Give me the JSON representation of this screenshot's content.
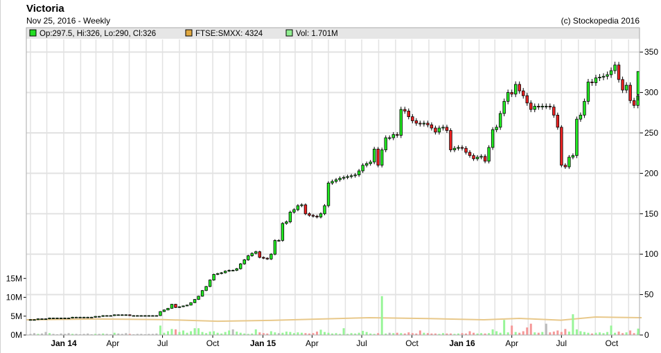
{
  "header": {
    "title": "Victoria",
    "subtitle": "Nov 25, 2016 - Weekly",
    "copyright": "(c) Stockopedia 2016"
  },
  "legend": [
    {
      "label": "Op:297.5, Hi:326, Lo:290, Cl:326",
      "color": "#22dd22"
    },
    {
      "label": "FTSE:SMXX: 4324",
      "color": "#e0a840"
    },
    {
      "label": "Vol: 1.701M",
      "color": "#90ee90"
    }
  ],
  "colors": {
    "up": "#22ee22",
    "down": "#ee2222",
    "vol_up": "#98f598",
    "vol_down": "#f59898",
    "vol_neutral": "#bbbbbb",
    "index": "#e8c88a",
    "grid": "#e2e2e2"
  },
  "chart_data": {
    "type": "candlestick",
    "interval": "weekly",
    "end_date": "2016-11-25",
    "price_axis": {
      "side": "right",
      "ticks": [
        0,
        50,
        100,
        150,
        200,
        250,
        300,
        350
      ],
      "range": [
        0,
        365
      ]
    },
    "volume_axis": {
      "side": "left",
      "ticks": [
        "0M",
        "5M",
        "10M",
        "15M"
      ],
      "tick_values": [
        0,
        5,
        10,
        15
      ]
    },
    "x_ticks": [
      {
        "label": "Jan 14",
        "date": "2014-01-01",
        "bold": true
      },
      {
        "label": "Apr",
        "date": "2014-04-01"
      },
      {
        "label": "Jul",
        "date": "2014-07-01"
      },
      {
        "label": "Oct",
        "date": "2014-10-01"
      },
      {
        "label": "Jan 15",
        "date": "2015-01-01",
        "bold": true
      },
      {
        "label": "Apr",
        "date": "2015-04-01"
      },
      {
        "label": "Jul",
        "date": "2015-07-01"
      },
      {
        "label": "Oct",
        "date": "2015-10-01"
      },
      {
        "label": "Jan 16",
        "date": "2016-01-01",
        "bold": true
      },
      {
        "label": "Apr",
        "date": "2016-04-01"
      },
      {
        "label": "Jul",
        "date": "2016-07-01"
      },
      {
        "label": "Oct",
        "date": "2016-10-01"
      }
    ],
    "first_open": 19,
    "last_candle": {
      "open": 297.5,
      "high": 326,
      "low": 290,
      "close": 326
    },
    "close": [
      19,
      19,
      20,
      20,
      20,
      21,
      21,
      21,
      21,
      21,
      21,
      22,
      22,
      22,
      22,
      22,
      22,
      23,
      23,
      24,
      24,
      24,
      25,
      25,
      25,
      25,
      24,
      24,
      24,
      24,
      24,
      24,
      24,
      24,
      29,
      31,
      33,
      38,
      34,
      35,
      36,
      37,
      40,
      44,
      48,
      55,
      60,
      68,
      75,
      76,
      77,
      79,
      80,
      80,
      82,
      88,
      93,
      98,
      101,
      103,
      96,
      95,
      94,
      100,
      117,
      117,
      138,
      140,
      152,
      155,
      160,
      161,
      150,
      148,
      147,
      146,
      150,
      160,
      188,
      190,
      192,
      194,
      195,
      196,
      197,
      198,
      203,
      210,
      212,
      214,
      230,
      210,
      229,
      244,
      244,
      248,
      247,
      279,
      277,
      270,
      265,
      262,
      261,
      262,
      260,
      256,
      251,
      256,
      257,
      253,
      229,
      231,
      232,
      231,
      226,
      222,
      218,
      220,
      221,
      215,
      232,
      254,
      257,
      274,
      289,
      300,
      298,
      310,
      302,
      296,
      287,
      279,
      283,
      282,
      283,
      283,
      282,
      272,
      257,
      210,
      208,
      220,
      222,
      267,
      272,
      289,
      313,
      312,
      318,
      319,
      320,
      322,
      327,
      334,
      316,
      303,
      309,
      290,
      284,
      296,
      326
    ],
    "volume_m": [
      0.3,
      0.5,
      0.3,
      0.4,
      0.8,
      0.5,
      0.3,
      0.2,
      0.4,
      0.3,
      0.5,
      0.3,
      0.3,
      0.2,
      0.3,
      0.4,
      0.2,
      0.3,
      0.3,
      0.4,
      0.3,
      0.2,
      0.6,
      0.4,
      0.3,
      0.5,
      0.3,
      0.2,
      0.3,
      0.3,
      0.2,
      0.3,
      0.3,
      0.4,
      2.5,
      0.6,
      1.0,
      1.6,
      1.5,
      0.8,
      1.2,
      0.6,
      1.0,
      1.8,
      1.8,
      0.8,
      0.5,
      0.9,
      1.0,
      0.6,
      0.4,
      0.8,
      1.2,
      1.5,
      0.9,
      0.6,
      0.4,
      0.3,
      0.4,
      1.5,
      0.7,
      0.5,
      0.4,
      1.0,
      0.7,
      0.5,
      0.6,
      0.9,
      0.8,
      0.5,
      0.7,
      0.6,
      0.5,
      0.4,
      0.5,
      0.9,
      1.4,
      0.8,
      0.6,
      0.4,
      0.5,
      0.3,
      1.8,
      0.3,
      0.5,
      0.4,
      0.6,
      1.1,
      0.8,
      0.4,
      0.3,
      0.5,
      10.3,
      0.4,
      0.6,
      0.5,
      0.6,
      0.5,
      0.4,
      0.7,
      0.5,
      0.4,
      1.2,
      0.6,
      0.5,
      0.4,
      0.4,
      0.3,
      0.5,
      0.4,
      0.4,
      0.3,
      0.4,
      0.5,
      0.4,
      1.0,
      0.6,
      0.4,
      0.5,
      0.4,
      0.5,
      1.5,
      1.0,
      0.6,
      4.0,
      0.7,
      2.5,
      0.8,
      0.6,
      1.0,
      2.0,
      3.0,
      0.7,
      0.6,
      0.8,
      3.0,
      0.7,
      0.9,
      1.2,
      0.8,
      1.6,
      0.9,
      5.5,
      1.5,
      1.0,
      0.8,
      0.6,
      0.4,
      0.6,
      0.7,
      0.5,
      0.8,
      2.5,
      0.6,
      0.9,
      0.5,
      0.7,
      1.2,
      0.5,
      0.6,
      1.7
    ],
    "index_series": {
      "name": "FTSE:SMXX",
      "points": [
        [
          "2013-10-25",
          3800
        ],
        [
          "2014-03-01",
          4000
        ],
        [
          "2014-07-01",
          3850
        ],
        [
          "2014-10-10",
          3450
        ],
        [
          "2015-01-15",
          3650
        ],
        [
          "2015-07-15",
          4324
        ],
        [
          "2015-11-01",
          4100
        ],
        [
          "2016-02-10",
          3800
        ],
        [
          "2016-04-15",
          4150
        ],
        [
          "2016-06-30",
          3700
        ],
        [
          "2016-09-01",
          4500
        ],
        [
          "2016-11-25",
          4324
        ]
      ]
    }
  }
}
